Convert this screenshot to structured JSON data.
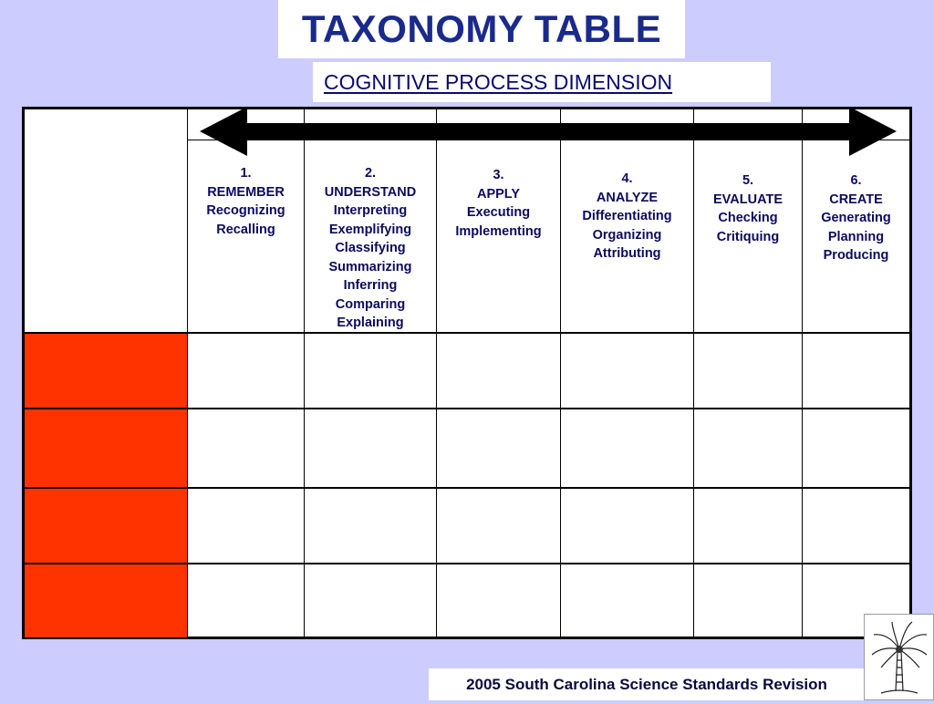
{
  "title": "TAXONOMY TABLE",
  "subtitle": "COGNITIVE PROCESS DIMENSION",
  "footer": "2005 South Carolina Science Standards Revision",
  "colors": {
    "background": "#ccccff",
    "knowledge_cells": "#ff3300",
    "title_text": "#1a2a8c",
    "header_text": "#0b0b5e"
  },
  "columns": [
    {
      "number": "1.",
      "name": "REMEMBER",
      "processes": [
        "Recognizing",
        "Recalling"
      ]
    },
    {
      "number": "2.",
      "name": "UNDERSTAND",
      "processes": [
        "Interpreting",
        "Exemplifying",
        "Classifying",
        "Summarizing",
        "Inferring",
        "Comparing",
        "Explaining"
      ]
    },
    {
      "number": "3.",
      "name": "APPLY",
      "processes": [
        "Executing",
        "Implementing"
      ]
    },
    {
      "number": "4.",
      "name": "ANALYZE",
      "processes": [
        "Differentiating",
        "Organizing",
        "Attributing"
      ]
    },
    {
      "number": "5.",
      "name": "EVALUATE",
      "processes": [
        "Checking",
        "Critiquing"
      ]
    },
    {
      "number": "6.",
      "name": "CREATE",
      "processes": [
        "Generating",
        "Planning",
        "Producing"
      ]
    }
  ],
  "logo_icon": "palmetto-tree-icon",
  "arrow_icon": "double-headed-arrow-icon"
}
